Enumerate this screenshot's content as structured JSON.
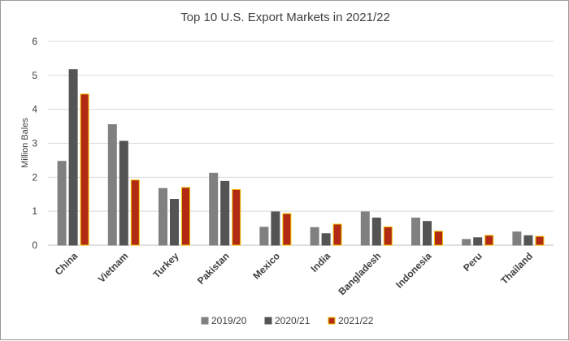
{
  "chart_data": {
    "type": "bar",
    "title": "Top 10 U.S. Export Markets in 2021/22",
    "ylabel": "Million Bales",
    "xlabel": "",
    "ylim": [
      0,
      6
    ],
    "yticks": [
      "0",
      "1",
      "2",
      "3",
      "4",
      "5",
      "6"
    ],
    "grid": true,
    "legend_position": "bottom",
    "categories": [
      "China",
      "Vietnam",
      "Turkey",
      "Pakistan",
      "Mexico",
      "India",
      "Bangladesh",
      "Indonesia",
      "Peru",
      "Thailand"
    ],
    "series": [
      {
        "name": "2019/20",
        "color": "#808080",
        "outline": "#808080",
        "values": [
          2.47,
          3.55,
          1.67,
          2.12,
          0.53,
          0.52,
          0.98,
          0.8,
          0.17,
          0.39
        ]
      },
      {
        "name": "2020/21",
        "color": "#545454",
        "outline": "#545454",
        "values": [
          5.17,
          3.06,
          1.35,
          1.88,
          0.98,
          0.34,
          0.8,
          0.7,
          0.22,
          0.28
        ]
      },
      {
        "name": "2021/22",
        "color": "#b22a14",
        "outline": "#f2c200",
        "values": [
          4.45,
          1.92,
          1.7,
          1.64,
          0.93,
          0.62,
          0.54,
          0.41,
          0.29,
          0.26
        ]
      }
    ]
  }
}
